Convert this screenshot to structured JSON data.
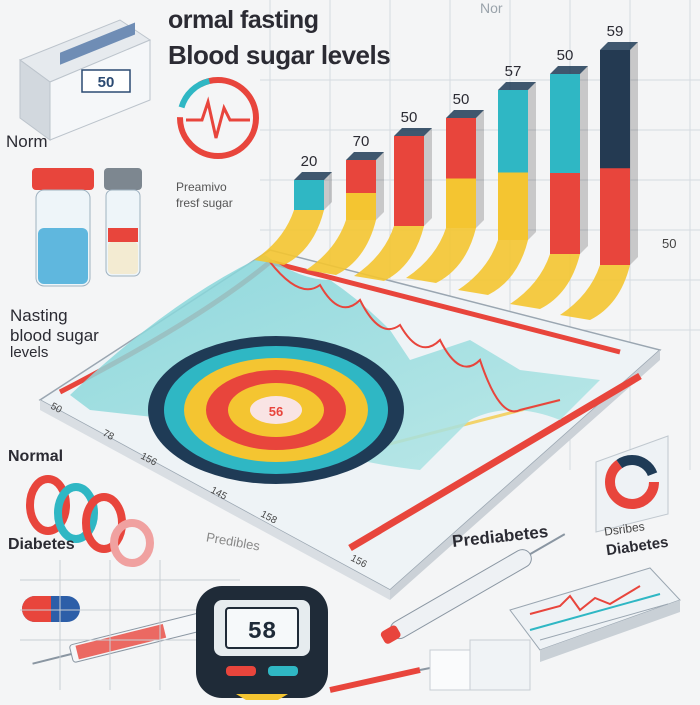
{
  "title": {
    "line1": "ormal fasting",
    "line2": "Blood sugar levels"
  },
  "labels": {
    "norm_top": "Norm",
    "norm_faint": "Nor",
    "prescription_line1": "Preamivo",
    "prescription_line2": "fresf sugar",
    "nasting_line1": "Nasting",
    "nasting_line2": "blood sugar",
    "nasting_line3": "levels",
    "normal_low": "Normal",
    "diabetes_low": "Diabetes",
    "prediabetes_faint": "Predibles",
    "prediabetes": "Prediabetes",
    "diabetes_right_line1": "Dsribes",
    "diabetes_right_line2": "Diabetes",
    "side_value": "50"
  },
  "box_label": "50",
  "meter_reading": "58",
  "target_value": "56",
  "bars": [
    {
      "value_label": "20"
    },
    {
      "value_label": "70"
    },
    {
      "value_label": "50"
    },
    {
      "value_label": "50"
    },
    {
      "value_label": "57"
    },
    {
      "value_label": "50"
    },
    {
      "value_label": "59"
    }
  ],
  "axis_labels": [
    "50",
    "78",
    "156",
    "145",
    "158",
    "156"
  ],
  "colors": {
    "yellow": "#f4c531",
    "red": "#e8453c",
    "teal": "#2fb7c4",
    "navy": "#243a52",
    "grid": "#c9cfd6"
  },
  "icons": [
    "vial-icon",
    "heartbeat-icon",
    "glucometer-icon",
    "pill-icon",
    "syringe-icon",
    "lancet-icon",
    "donut-chart-icon",
    "monitor-icon"
  ]
}
